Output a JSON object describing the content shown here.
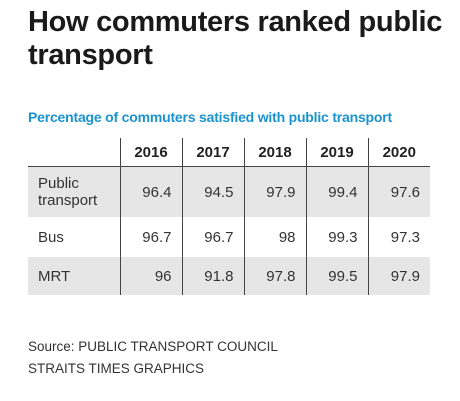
{
  "title": "How commuters ranked public transport",
  "subtitle": "Percentage of commuters satisfied with public transport",
  "chart_data": {
    "type": "table",
    "title": "How commuters ranked public transport",
    "subtitle": "Percentage of commuters satisfied with public transport",
    "columns": [
      "2016",
      "2017",
      "2018",
      "2019",
      "2020"
    ],
    "rows": [
      {
        "label": "Public transport",
        "values": [
          "96.4",
          "94.5",
          "97.9",
          "99.4",
          "97.6"
        ]
      },
      {
        "label": "Bus",
        "values": [
          "96.7",
          "96.7",
          "98",
          "99.3",
          "97.3"
        ]
      },
      {
        "label": "MRT",
        "values": [
          "96",
          "91.8",
          "97.8",
          "99.5",
          "97.9"
        ]
      }
    ]
  },
  "source": {
    "line1": "Source: PUBLIC TRANSPORT COUNCIL",
    "line2": "STRAITS TIMES GRAPHICS"
  }
}
